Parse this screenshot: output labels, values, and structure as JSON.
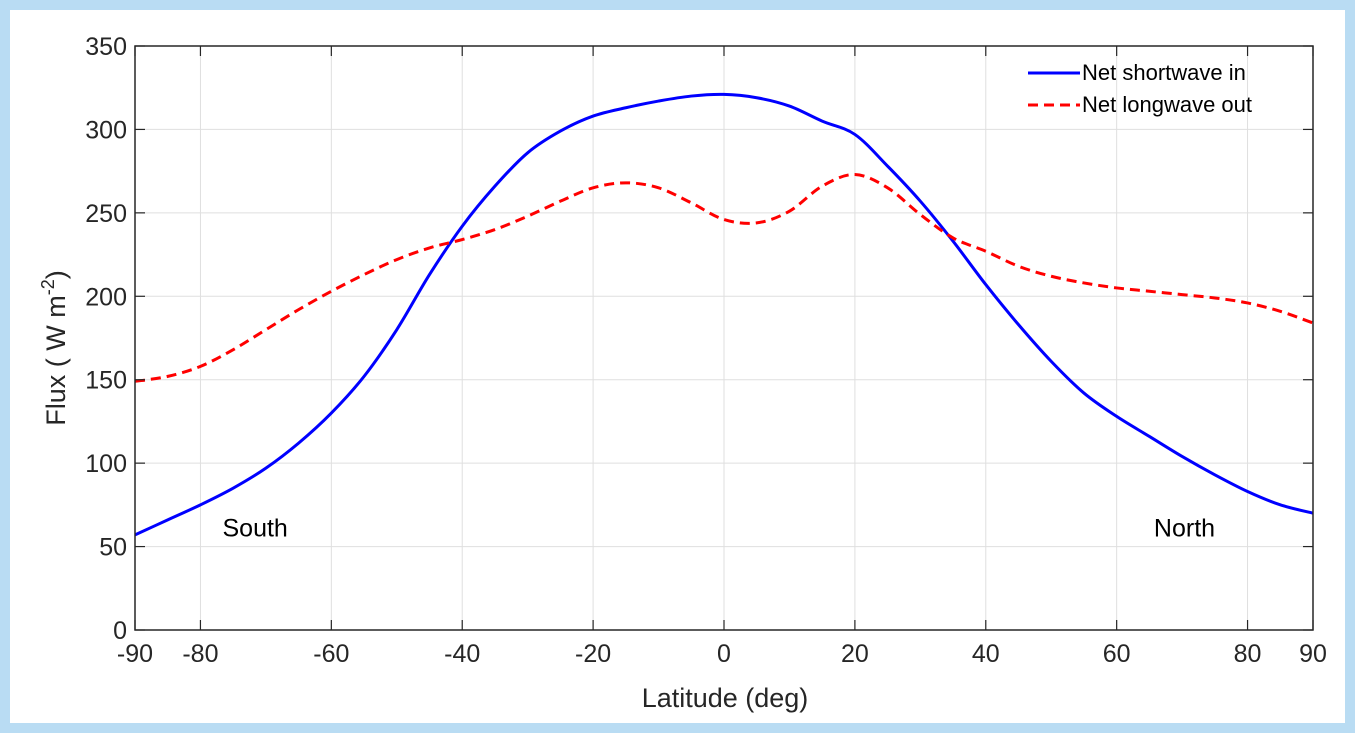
{
  "colors": {
    "page_background": "#b9dcf3",
    "plot_background": "#ffffff",
    "grid": "#dfdfdf",
    "axis": "#262626",
    "shortwave": "#0000ff",
    "longwave": "#ff0000"
  },
  "chart_data": {
    "type": "line",
    "title": "",
    "xlabel": "Latitude (deg)",
    "ylabel_main": "Flux ( W m",
    "ylabel_sup": "-2",
    "ylabel_tail": ")",
    "xlim": [
      -90,
      90
    ],
    "ylim": [
      0,
      350
    ],
    "grid": true,
    "legend_position": "top-right",
    "xticks": [
      -90,
      -80,
      -60,
      -40,
      -20,
      0,
      20,
      40,
      60,
      80,
      90
    ],
    "yticks": [
      0,
      50,
      100,
      150,
      200,
      250,
      300,
      350
    ],
    "series": [
      {
        "name": "Net shortwave in",
        "style": "solid",
        "color": "#0000ff",
        "x": [
          -90,
          -85,
          -80,
          -75,
          -70,
          -65,
          -60,
          -55,
          -50,
          -45,
          -40,
          -35,
          -30,
          -25,
          -20,
          -15,
          -10,
          -5,
          0,
          5,
          10,
          15,
          20,
          25,
          30,
          35,
          40,
          45,
          50,
          55,
          60,
          65,
          70,
          75,
          80,
          85,
          90
        ],
        "y": [
          57,
          66,
          75,
          85,
          97,
          112,
          130,
          152,
          180,
          213,
          242,
          266,
          286,
          299,
          308,
          313,
          317,
          320,
          321,
          319,
          314,
          305,
          297,
          278,
          257,
          233,
          207,
          183,
          161,
          142,
          128,
          116,
          104,
          93,
          83,
          75,
          70
        ]
      },
      {
        "name": "Net longwave out",
        "style": "dashed",
        "color": "#ff0000",
        "x": [
          -90,
          -85,
          -80,
          -75,
          -70,
          -65,
          -60,
          -55,
          -50,
          -45,
          -40,
          -35,
          -30,
          -25,
          -20,
          -15,
          -10,
          -5,
          0,
          5,
          10,
          15,
          20,
          25,
          30,
          35,
          40,
          45,
          50,
          55,
          60,
          65,
          70,
          75,
          80,
          85,
          90
        ],
        "y": [
          149,
          152,
          158,
          168,
          180,
          192,
          203,
          213,
          222,
          229,
          234,
          240,
          248,
          257,
          265,
          268,
          265,
          256,
          246,
          244,
          251,
          266,
          273,
          265,
          249,
          235,
          227,
          218,
          212,
          208,
          205,
          203,
          201,
          199,
          196,
          191,
          184
        ]
      }
    ],
    "annotations": [
      {
        "text": "South",
        "x": -75,
        "y": 56
      },
      {
        "text": "North",
        "x": 67,
        "y": 56
      }
    ]
  }
}
